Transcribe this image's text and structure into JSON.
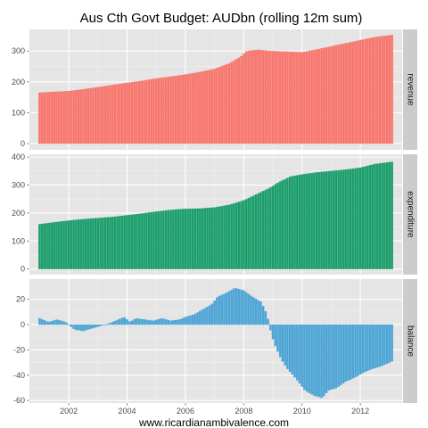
{
  "chart_data": {
    "type": "bar",
    "title": "Aus Cth Govt Budget: AUDbn (rolling 12m sum)",
    "caption": "www.ricardianambivalence.com",
    "x": {
      "range": [
        "2001-01",
        "2013-02"
      ],
      "ticks": [
        "2002",
        "2004",
        "2006",
        "2008",
        "2010",
        "2012"
      ]
    },
    "grid": true,
    "legend": "none",
    "series": [
      {
        "name": "revenue",
        "color": "#f8766d",
        "ylim": [
          -20,
          370
        ],
        "yticks": [
          0,
          100,
          200,
          300
        ],
        "anchors": [
          [
            2001.0,
            165
          ],
          [
            2001.5,
            168
          ],
          [
            2002.0,
            170
          ],
          [
            2002.5,
            176
          ],
          [
            2003.0,
            183
          ],
          [
            2003.5,
            190
          ],
          [
            2004.0,
            197
          ],
          [
            2004.5,
            203
          ],
          [
            2005.0,
            211
          ],
          [
            2005.5,
            217
          ],
          [
            2006.0,
            224
          ],
          [
            2006.5,
            232
          ],
          [
            2007.0,
            242
          ],
          [
            2007.5,
            260
          ],
          [
            2007.9,
            282
          ],
          [
            2008.1,
            300
          ],
          [
            2008.5,
            304
          ],
          [
            2008.9,
            300
          ],
          [
            2009.5,
            298
          ],
          [
            2010.0,
            296
          ],
          [
            2010.5,
            305
          ],
          [
            2011.0,
            315
          ],
          [
            2011.5,
            325
          ],
          [
            2012.0,
            335
          ],
          [
            2012.5,
            345
          ],
          [
            2013.1,
            352
          ]
        ]
      },
      {
        "name": "expenditure",
        "color": "#1a9e6c",
        "ylim": [
          -20,
          410
        ],
        "yticks": [
          0,
          100,
          200,
          300,
          400
        ],
        "anchors": [
          [
            2001.0,
            160
          ],
          [
            2001.5,
            167
          ],
          [
            2002.0,
            173
          ],
          [
            2002.5,
            178
          ],
          [
            2003.0,
            182
          ],
          [
            2003.5,
            186
          ],
          [
            2004.0,
            192
          ],
          [
            2004.5,
            198
          ],
          [
            2005.0,
            205
          ],
          [
            2005.5,
            211
          ],
          [
            2006.0,
            215
          ],
          [
            2006.5,
            216
          ],
          [
            2007.0,
            220
          ],
          [
            2007.5,
            229
          ],
          [
            2008.0,
            245
          ],
          [
            2008.5,
            270
          ],
          [
            2008.9,
            290
          ],
          [
            2009.2,
            310
          ],
          [
            2009.6,
            330
          ],
          [
            2010.0,
            338
          ],
          [
            2010.5,
            345
          ],
          [
            2011.0,
            350
          ],
          [
            2011.5,
            355
          ],
          [
            2012.0,
            362
          ],
          [
            2012.5,
            375
          ],
          [
            2013.1,
            383
          ]
        ]
      },
      {
        "name": "balance",
        "color": "#4da5d5",
        "ylim": [
          -62,
          36
        ],
        "yticks": [
          -60,
          -40,
          -20,
          0,
          20
        ],
        "anchors": [
          [
            2001.0,
            5
          ],
          [
            2001.3,
            2
          ],
          [
            2001.6,
            4
          ],
          [
            2001.9,
            2
          ],
          [
            2002.2,
            -4
          ],
          [
            2002.5,
            -5
          ],
          [
            2002.8,
            -3
          ],
          [
            2003.1,
            -1
          ],
          [
            2003.4,
            1
          ],
          [
            2003.7,
            4
          ],
          [
            2003.9,
            6
          ],
          [
            2004.1,
            2
          ],
          [
            2004.3,
            5
          ],
          [
            2004.6,
            4
          ],
          [
            2004.9,
            3
          ],
          [
            2005.2,
            5
          ],
          [
            2005.5,
            3
          ],
          [
            2005.8,
            4
          ],
          [
            2006.0,
            6
          ],
          [
            2006.3,
            8
          ],
          [
            2006.6,
            12
          ],
          [
            2006.9,
            16
          ],
          [
            2007.1,
            22
          ],
          [
            2007.4,
            25
          ],
          [
            2007.7,
            29
          ],
          [
            2008.0,
            27
          ],
          [
            2008.3,
            22
          ],
          [
            2008.6,
            18
          ],
          [
            2008.8,
            8
          ],
          [
            2008.95,
            -8
          ],
          [
            2009.1,
            -18
          ],
          [
            2009.3,
            -28
          ],
          [
            2009.5,
            -35
          ],
          [
            2009.8,
            -43
          ],
          [
            2010.1,
            -52
          ],
          [
            2010.4,
            -56
          ],
          [
            2010.7,
            -58
          ],
          [
            2010.9,
            -52
          ],
          [
            2011.2,
            -50
          ],
          [
            2011.5,
            -45
          ],
          [
            2011.8,
            -42
          ],
          [
            2012.1,
            -38
          ],
          [
            2012.4,
            -35
          ],
          [
            2012.7,
            -33
          ],
          [
            2013.1,
            -29
          ]
        ]
      }
    ]
  }
}
